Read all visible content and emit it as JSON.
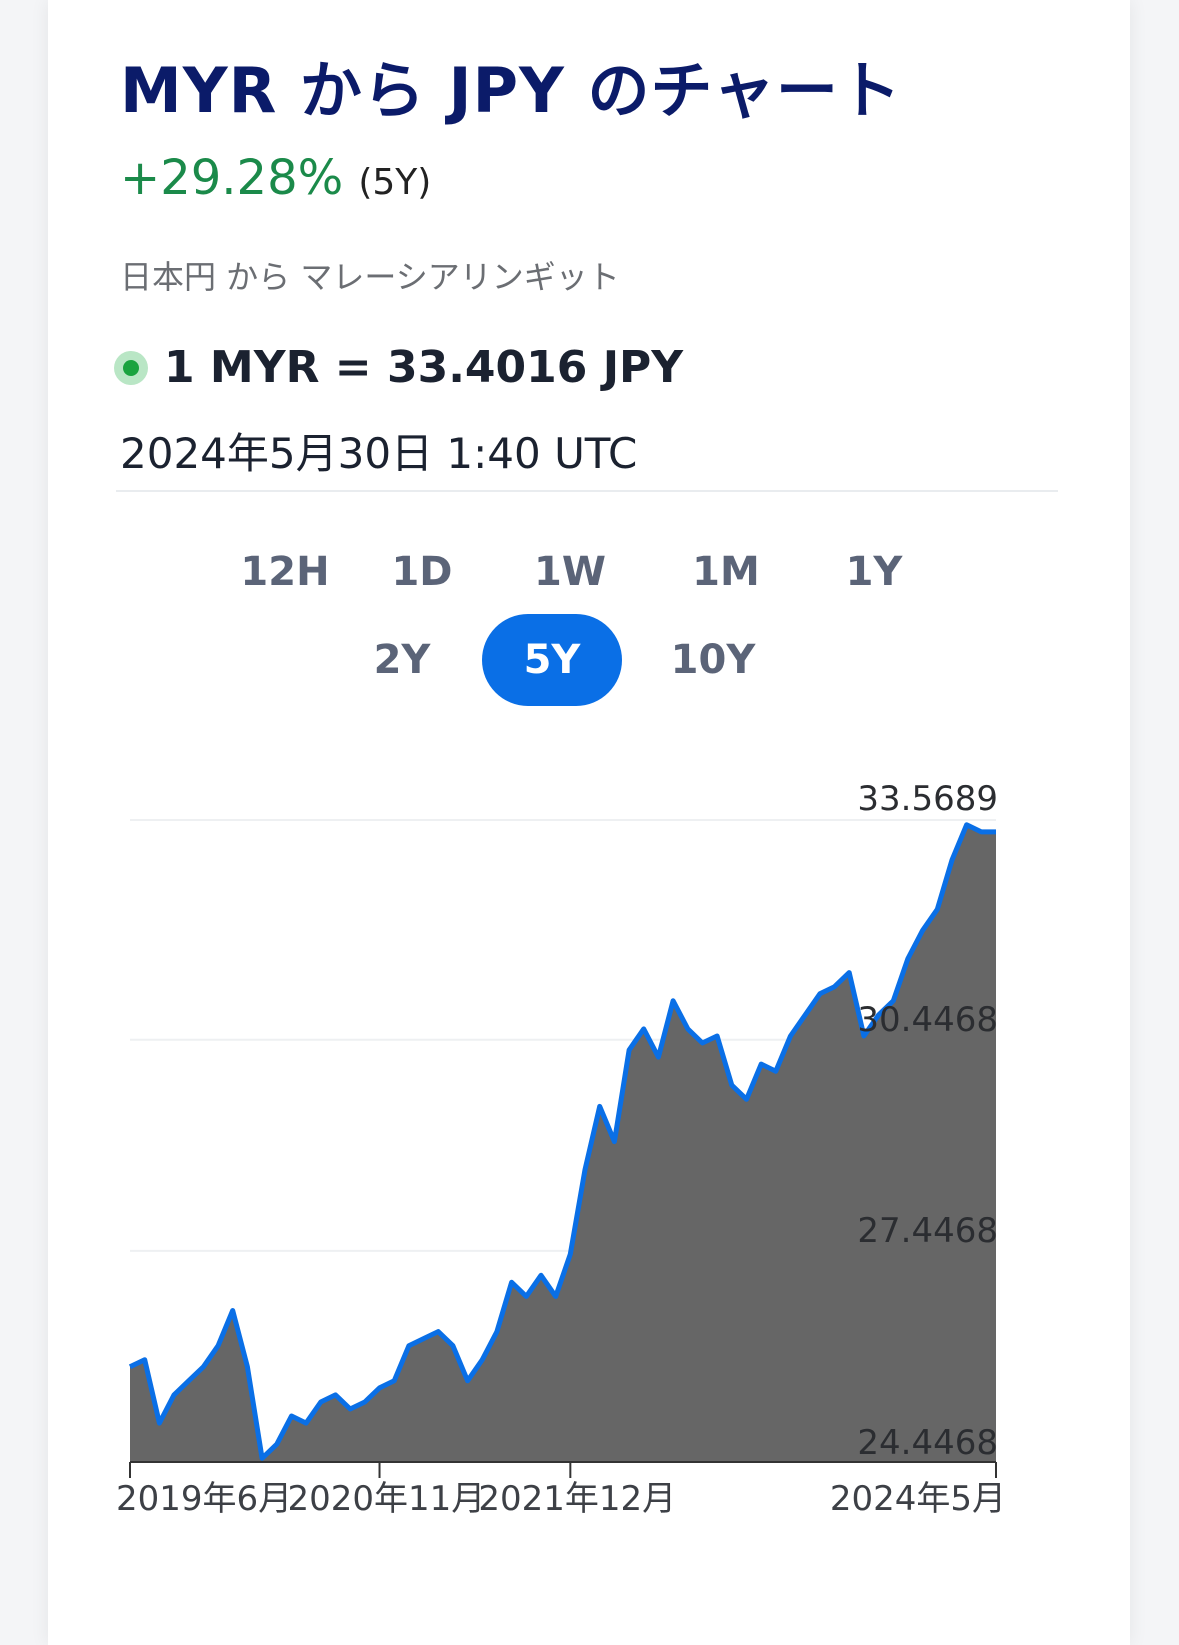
{
  "header": {
    "title": "MYR から JPY のチャート",
    "change": "+29.28%",
    "change_period": "(5Y)",
    "subtitle": "日本円 から マレーシアリンギット",
    "rate": "1 MYR = 33.4016 JPY",
    "timestamp": "2024年5月30日 1:40 UTC"
  },
  "ranges": [
    {
      "label": "12H",
      "active": false
    },
    {
      "label": "1D",
      "active": false
    },
    {
      "label": "1W",
      "active": false
    },
    {
      "label": "1M",
      "active": false
    },
    {
      "label": "1Y",
      "active": false
    },
    {
      "label": "2Y",
      "active": false
    },
    {
      "label": "5Y",
      "active": true
    },
    {
      "label": "10Y",
      "active": false
    }
  ],
  "colors": {
    "line": "#0a6fe6",
    "area": "#666666",
    "positive": "#1b8a4a",
    "title": "#0b1b69"
  },
  "chart_data": {
    "type": "area",
    "title": "",
    "xlabel": "",
    "ylabel": "",
    "y_ticks": [
      "33.5689",
      "30.4468",
      "27.4468",
      "24.4468"
    ],
    "y_tick_values": [
      33.5689,
      30.4468,
      27.4468,
      24.4468
    ],
    "ylim": [
      24.4468,
      33.5689
    ],
    "x_ticks": [
      "2019年6月",
      "2020年11月",
      "2021年12月",
      "2024年5月"
    ],
    "x_tick_dates": [
      "2019-06",
      "2020-11",
      "2021-12",
      "2024-05"
    ],
    "grid": true,
    "series": [
      {
        "name": "",
        "x": [
          "2019-06",
          "2019-07",
          "2019-08",
          "2019-09",
          "2019-10",
          "2019-11",
          "2019-12",
          "2020-01",
          "2020-02",
          "2020-03",
          "2020-04",
          "2020-05",
          "2020-06",
          "2020-07",
          "2020-08",
          "2020-09",
          "2020-10",
          "2020-11",
          "2020-12",
          "2021-01",
          "2021-02",
          "2021-03",
          "2021-04",
          "2021-05",
          "2021-06",
          "2021-07",
          "2021-08",
          "2021-09",
          "2021-10",
          "2021-11",
          "2021-12",
          "2022-01",
          "2022-02",
          "2022-03",
          "2022-04",
          "2022-05",
          "2022-06",
          "2022-07",
          "2022-08",
          "2022-09",
          "2022-10",
          "2022-11",
          "2022-12",
          "2023-01",
          "2023-02",
          "2023-03",
          "2023-04",
          "2023-05",
          "2023-06",
          "2023-07",
          "2023-08",
          "2023-09",
          "2023-10",
          "2023-11",
          "2023-12",
          "2024-01",
          "2024-02",
          "2024-03",
          "2024-04",
          "2024-05"
        ],
        "values": [
          25.8,
          25.9,
          25.0,
          25.4,
          25.6,
          25.8,
          26.1,
          26.6,
          25.8,
          24.5,
          24.7,
          25.1,
          25.0,
          25.3,
          25.4,
          25.2,
          25.3,
          25.5,
          25.6,
          26.1,
          26.2,
          26.3,
          26.1,
          25.6,
          25.9,
          26.3,
          27.0,
          26.8,
          27.1,
          26.8,
          27.4,
          28.6,
          29.5,
          29.0,
          30.3,
          30.6,
          30.2,
          31.0,
          30.6,
          30.4,
          30.5,
          29.8,
          29.6,
          30.1,
          30.0,
          30.5,
          30.8,
          31.1,
          31.2,
          31.4,
          30.5,
          30.8,
          31.0,
          31.6,
          32.0,
          32.3,
          33.0,
          33.5,
          33.4,
          33.4
        ]
      }
    ]
  }
}
